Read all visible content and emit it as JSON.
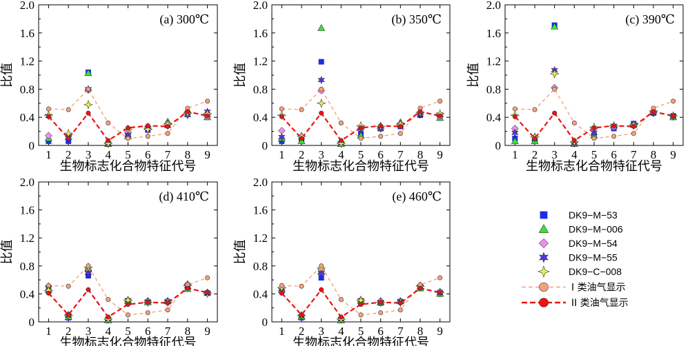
{
  "chart_data": [
    {
      "type": "line",
      "title": "(a) 300℃",
      "xlabel": "生物标志化合物特征代号",
      "ylabel": "比值",
      "categories": [
        "1",
        "2",
        "3",
        "4",
        "5",
        "6",
        "7",
        "8",
        "9"
      ],
      "ylim": [
        0,
        2.0
      ],
      "yticks": [
        "0",
        "0.4",
        "0.8",
        "1.2",
        "1.6",
        "2.0"
      ],
      "series": [
        {
          "name": "DK9−M−53",
          "values": [
            0.06,
            0.06,
            1.04,
            0.02,
            0.14,
            0.22,
            0.29,
            0.45,
            0.42
          ]
        },
        {
          "name": "DK9−M−006",
          "values": [
            0.1,
            0.12,
            1.03,
            0.02,
            0.13,
            0.27,
            0.34,
            0.5,
            0.4
          ]
        },
        {
          "name": "DK9−M−54",
          "values": [
            0.14,
            0.14,
            0.79,
            0.03,
            0.19,
            0.25,
            0.31,
            0.46,
            0.41
          ]
        },
        {
          "name": "DK9−M−55",
          "values": [
            0.42,
            0.15,
            0.8,
            0.02,
            0.15,
            0.25,
            0.28,
            0.43,
            0.48
          ]
        },
        {
          "name": "DK9−C−008",
          "values": [
            0.43,
            0.17,
            0.58,
            0.03,
            0.23,
            0.23,
            0.3,
            0.46,
            0.45
          ]
        },
        {
          "name": "I 类油气显示",
          "values": [
            0.52,
            0.51,
            0.8,
            0.32,
            0.1,
            0.13,
            0.17,
            0.53,
            0.63
          ]
        },
        {
          "name": "II 类油气显示",
          "values": [
            0.41,
            0.1,
            0.46,
            0.07,
            0.25,
            0.28,
            0.27,
            0.48,
            0.42
          ]
        }
      ]
    },
    {
      "type": "line",
      "title": "(b) 350℃",
      "xlabel": "生物标志化合物特征代号",
      "ylabel": "比值",
      "categories": [
        "1",
        "2",
        "3",
        "4",
        "5",
        "6",
        "7",
        "8",
        "9"
      ],
      "ylim": [
        0,
        2.0
      ],
      "yticks": [
        "0",
        "0.4",
        "0.8",
        "1.2",
        "1.6",
        "2.0"
      ],
      "series": [
        {
          "name": "DK9−M−53",
          "values": [
            0.06,
            0.06,
            1.19,
            0.02,
            0.17,
            0.24,
            0.27,
            0.43,
            0.42
          ]
        },
        {
          "name": "DK9−M−006",
          "values": [
            0.1,
            0.06,
            1.67,
            0.02,
            0.14,
            0.28,
            0.33,
            0.48,
            0.39
          ]
        },
        {
          "name": "DK9−M−54",
          "values": [
            0.21,
            0.13,
            0.78,
            0.04,
            0.24,
            0.24,
            0.31,
            0.45,
            0.41
          ]
        },
        {
          "name": "DK9−M−55",
          "values": [
            0.12,
            0.12,
            0.93,
            0.03,
            0.25,
            0.24,
            0.29,
            0.44,
            0.44
          ]
        },
        {
          "name": "DK9−C−008",
          "values": [
            0.43,
            0.13,
            0.6,
            0.03,
            0.28,
            0.27,
            0.3,
            0.47,
            0.45
          ]
        },
        {
          "name": "I 类油气显示",
          "values": [
            0.52,
            0.51,
            0.8,
            0.32,
            0.1,
            0.13,
            0.17,
            0.53,
            0.63
          ]
        },
        {
          "name": "II 类油气显示",
          "values": [
            0.41,
            0.1,
            0.46,
            0.07,
            0.25,
            0.28,
            0.27,
            0.48,
            0.42
          ]
        }
      ]
    },
    {
      "type": "line",
      "title": "(c) 390℃",
      "xlabel": "生物标志化合物特征代号",
      "ylabel": "比值",
      "categories": [
        "1",
        "2",
        "3",
        "4",
        "5",
        "6",
        "7",
        "8",
        "9"
      ],
      "ylim": [
        0,
        2.0
      ],
      "yticks": [
        "0",
        "0.4",
        "0.8",
        "1.2",
        "1.6",
        "2.0"
      ],
      "series": [
        {
          "name": "DK9−M−53",
          "values": [
            0.1,
            0.06,
            1.71,
            0.02,
            0.14,
            0.24,
            0.31,
            0.46,
            0.42
          ]
        },
        {
          "name": "DK9−M−006",
          "values": [
            0.06,
            0.06,
            1.69,
            0.02,
            0.14,
            0.28,
            0.3,
            0.5,
            0.4
          ]
        },
        {
          "name": "DK9−M−54",
          "values": [
            0.24,
            0.12,
            0.82,
            0.04,
            0.24,
            0.26,
            0.29,
            0.46,
            0.42
          ]
        },
        {
          "name": "DK9−M−55",
          "values": [
            0.18,
            0.1,
            1.07,
            0.03,
            0.18,
            0.28,
            0.28,
            0.46,
            0.41
          ]
        },
        {
          "name": "DK9−C−008",
          "values": [
            0.43,
            0.12,
            1.02,
            0.05,
            0.26,
            0.28,
            0.29,
            0.49,
            0.42
          ]
        },
        {
          "name": "I 类油气显示",
          "values": [
            0.52,
            0.51,
            0.8,
            0.32,
            0.1,
            0.13,
            0.17,
            0.53,
            0.63
          ]
        },
        {
          "name": "II 类油气显示",
          "values": [
            0.41,
            0.1,
            0.46,
            0.07,
            0.25,
            0.28,
            0.27,
            0.48,
            0.42
          ]
        }
      ]
    },
    {
      "type": "line",
      "title": "(d) 410℃",
      "xlabel": "生物标志化合物特征代号",
      "ylabel": "比值",
      "categories": [
        "1",
        "2",
        "3",
        "4",
        "5",
        "6",
        "7",
        "8",
        "9"
      ],
      "ylim": [
        0,
        2.0
      ],
      "yticks": [
        "0",
        "0.4",
        "0.8",
        "1.2",
        "1.6",
        "2.0"
      ],
      "series": [
        {
          "name": "DK9−M−53",
          "values": [
            0.44,
            0.06,
            0.66,
            0.02,
            0.28,
            0.28,
            0.29,
            0.47,
            0.41
          ]
        },
        {
          "name": "DK9−M−006",
          "values": [
            0.46,
            0.07,
            0.77,
            0.02,
            0.3,
            0.28,
            0.3,
            0.47,
            0.42
          ]
        },
        {
          "name": "DK9−M−54",
          "values": [
            0.51,
            0.1,
            0.72,
            0.04,
            0.31,
            0.3,
            0.3,
            0.54,
            0.42
          ]
        },
        {
          "name": "DK9−M−55",
          "values": [
            0.48,
            0.09,
            0.7,
            0.04,
            0.31,
            0.29,
            0.29,
            0.51,
            0.41
          ]
        },
        {
          "name": "DK9−C−008",
          "values": [
            0.45,
            0.09,
            0.78,
            0.04,
            0.31,
            0.28,
            0.28,
            0.52,
            0.41
          ]
        },
        {
          "name": "I 类油气显示",
          "values": [
            0.52,
            0.51,
            0.8,
            0.32,
            0.1,
            0.13,
            0.17,
            0.53,
            0.63
          ]
        },
        {
          "name": "II 类油气显示",
          "values": [
            0.41,
            0.1,
            0.46,
            0.07,
            0.25,
            0.28,
            0.27,
            0.48,
            0.42
          ]
        }
      ]
    },
    {
      "type": "line",
      "title": "(e) 460℃",
      "xlabel": "生物标志化合物特征代号",
      "ylabel": "比值",
      "categories": [
        "1",
        "2",
        "3",
        "4",
        "5",
        "6",
        "7",
        "8",
        "9"
      ],
      "ylim": [
        0,
        2.0
      ],
      "yticks": [
        "0",
        "0.4",
        "0.8",
        "1.2",
        "1.6",
        "2.0"
      ],
      "series": [
        {
          "name": "DK9−M−53",
          "values": [
            0.44,
            0.06,
            0.63,
            0.02,
            0.28,
            0.27,
            0.29,
            0.48,
            0.42
          ]
        },
        {
          "name": "DK9−M−006",
          "values": [
            0.46,
            0.07,
            0.72,
            0.02,
            0.3,
            0.28,
            0.3,
            0.48,
            0.4
          ]
        },
        {
          "name": "DK9−M−54",
          "values": [
            0.48,
            0.09,
            0.74,
            0.04,
            0.31,
            0.3,
            0.29,
            0.52,
            0.43
          ]
        },
        {
          "name": "DK9−M−55",
          "values": [
            0.47,
            0.08,
            0.7,
            0.04,
            0.31,
            0.28,
            0.29,
            0.5,
            0.41
          ]
        },
        {
          "name": "DK9−C−008",
          "values": [
            0.49,
            0.09,
            0.77,
            0.04,
            0.31,
            0.28,
            0.28,
            0.51,
            0.42
          ]
        },
        {
          "name": "I 类油气显示",
          "values": [
            0.52,
            0.51,
            0.8,
            0.32,
            0.1,
            0.13,
            0.17,
            0.53,
            0.63
          ]
        },
        {
          "name": "II 类油气显示",
          "values": [
            0.41,
            0.1,
            0.46,
            0.07,
            0.25,
            0.28,
            0.27,
            0.48,
            0.42
          ]
        }
      ]
    }
  ],
  "styles": {
    "DK9−M−53": {
      "marker": "square",
      "color": "#1a2ee6"
    },
    "DK9−M−006": {
      "marker": "triangle",
      "color": "#33e633"
    },
    "DK9−M−54": {
      "marker": "diamond",
      "color": "#f08cf0"
    },
    "DK9−M−55": {
      "marker": "star",
      "color": "#5533dd"
    },
    "DK9−C−008": {
      "marker": "star4",
      "color": "#f2f044"
    },
    "I 类油气显示": {
      "marker": "circle",
      "color": "#f5a07a",
      "line": "#f5a07a"
    },
    "II 类油气显示": {
      "marker": "circle",
      "color": "#ee1111",
      "line": "#ee1111"
    }
  },
  "legend": {
    "placement": "bottom-right",
    "items": [
      "DK9−M−53",
      "DK9−M−006",
      "DK9−M−54",
      "DK9−M−55",
      "DK9−C−008",
      "I 类油气显示",
      "II 类油气显示"
    ]
  }
}
